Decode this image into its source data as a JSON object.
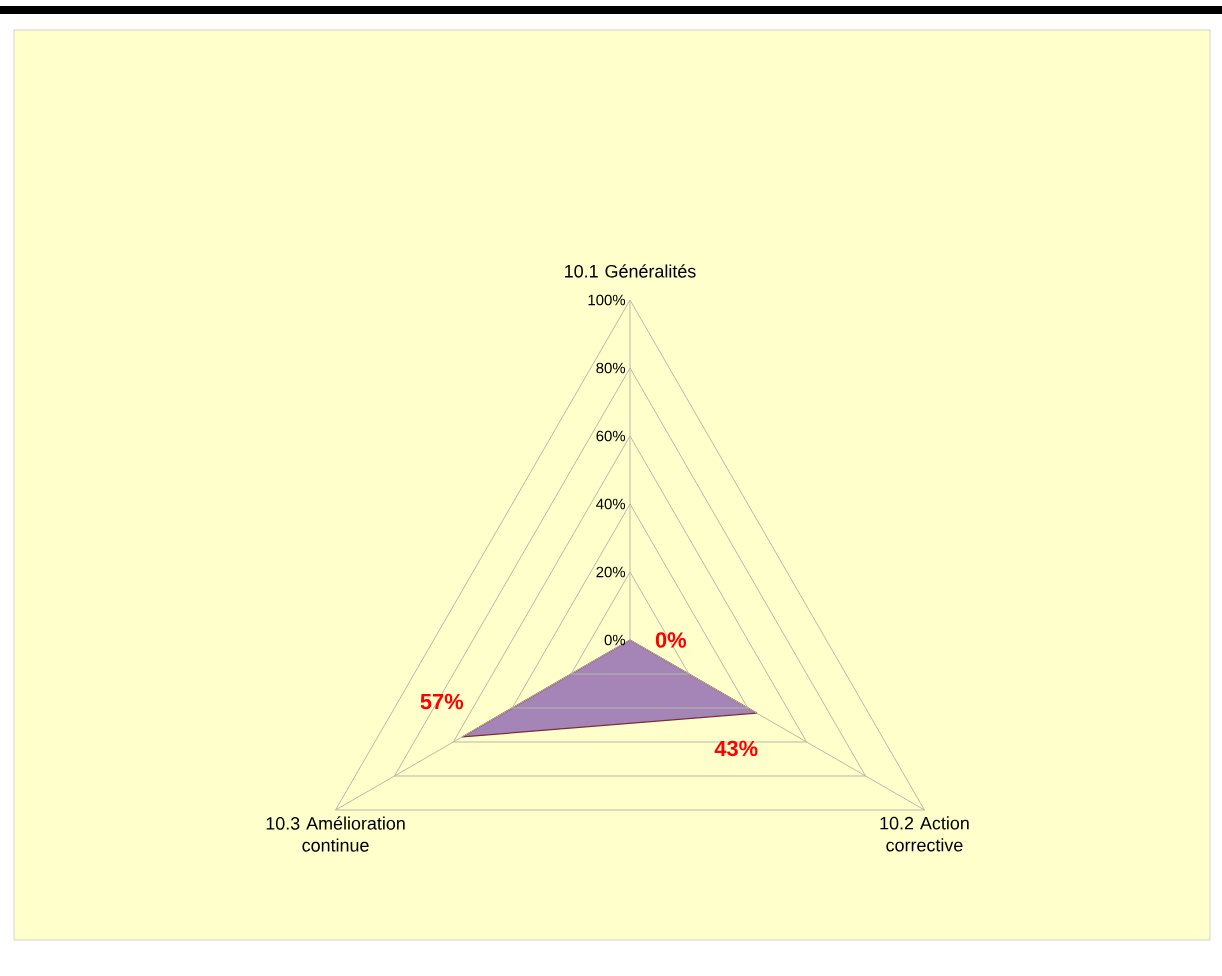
{
  "chart_data": {
    "type": "radar",
    "categories": [
      "10.1 Généralités",
      "10.2 Action corrective",
      "10.3 Amélioration continue"
    ],
    "series": [
      {
        "color": "#a584b8",
        "values": [
          0,
          43,
          57
        ],
        "value_labels": [
          "0%",
          "43%",
          "57%"
        ]
      }
    ],
    "ylim": [
      0,
      100
    ],
    "yticks": [
      {
        "value": 0,
        "label": "0%"
      },
      {
        "value": 20,
        "label": "20%"
      },
      {
        "value": 40,
        "label": "40%"
      },
      {
        "value": 60,
        "label": "60%"
      },
      {
        "value": 80,
        "label": "80%"
      },
      {
        "value": 100,
        "label": "100%"
      }
    ],
    "grid": true
  }
}
